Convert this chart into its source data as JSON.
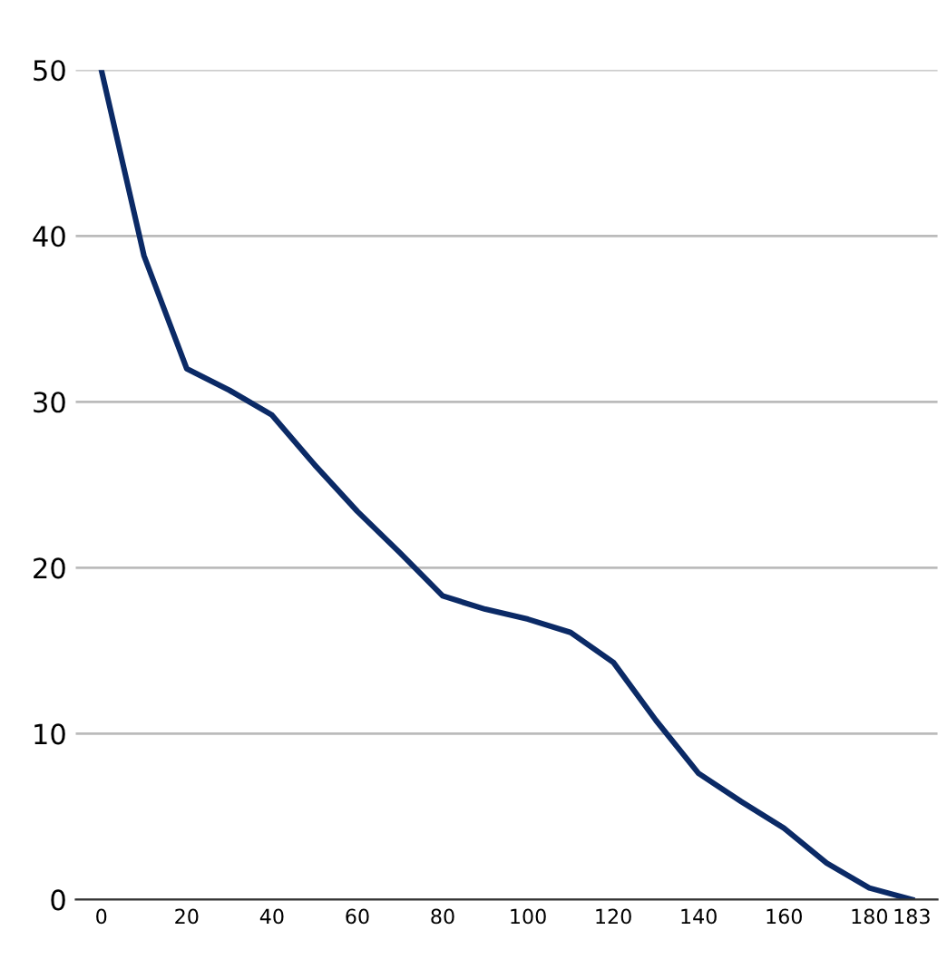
{
  "chart_data": {
    "type": "line",
    "categories": [
      "0",
      null,
      "20",
      null,
      "40",
      null,
      "60",
      null,
      "80",
      null,
      "100",
      null,
      "120",
      null,
      "140",
      null,
      "160",
      null,
      "180",
      "183"
    ],
    "series": [
      {
        "color": "#0b2a66",
        "values": [
          50,
          38.8,
          32,
          30.7,
          29.2,
          26.2,
          23.4,
          20.9,
          18.3,
          17.5,
          16.9,
          16.1,
          14.3,
          10.8,
          7.6,
          5.9,
          4.3,
          2.2,
          0.7,
          0
        ]
      }
    ],
    "ylim": [
      0,
      50
    ],
    "yticks": [
      0,
      10,
      20,
      30,
      40,
      50
    ],
    "grid": "y",
    "marker": "none",
    "line_style": "solid"
  }
}
